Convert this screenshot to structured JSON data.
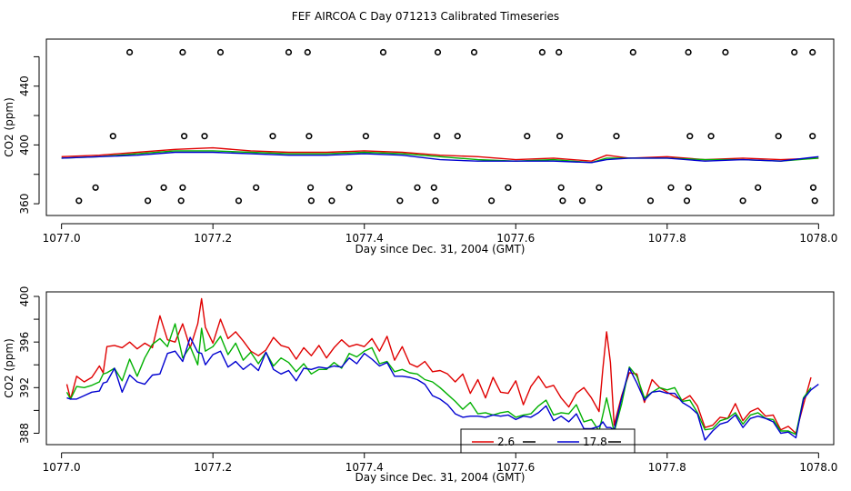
{
  "title": "FEF AIRCOA C  Day 071213  Calibrated Timeseries",
  "chart_data": [
    {
      "type": "line",
      "panel": "top",
      "xlabel": "Day since Dec. 31, 2004 (GMT)",
      "ylabel": "CO2 (ppm)",
      "xlim": [
        1076.98,
        1078.02
      ],
      "ylim": [
        352,
        472
      ],
      "x_ticks": [
        1077.0,
        1077.2,
        1077.4,
        1077.6,
        1077.8,
        1078.0
      ],
      "x_tick_labels": [
        "1077.0",
        "1077.2",
        "1077.4",
        "1077.6",
        "1077.8",
        "1078.0"
      ],
      "y_ticks": [
        360,
        380,
        400,
        420,
        440,
        460
      ],
      "y_tick_labels": [
        "360",
        "",
        "400",
        "",
        "440",
        ""
      ],
      "series": [
        {
          "name": "red",
          "color": "#e00000",
          "x": [
            1077.0,
            1077.05,
            1077.1,
            1077.15,
            1077.2,
            1077.25,
            1077.3,
            1077.35,
            1077.4,
            1077.45,
            1077.5,
            1077.55,
            1077.6,
            1077.65,
            1077.7,
            1077.72,
            1077.75,
            1077.8,
            1077.85,
            1077.9,
            1077.95,
            1078.0
          ],
          "y": [
            392,
            393,
            395,
            397,
            398,
            396,
            395,
            395,
            396,
            395,
            393,
            392,
            390,
            391,
            389,
            393,
            391,
            392,
            390,
            391,
            390,
            391
          ]
        },
        {
          "name": "green",
          "color": "#00b000",
          "x": [
            1077.0,
            1077.05,
            1077.1,
            1077.15,
            1077.2,
            1077.25,
            1077.3,
            1077.35,
            1077.4,
            1077.45,
            1077.5,
            1077.55,
            1077.6,
            1077.65,
            1077.7,
            1077.72,
            1077.75,
            1077.8,
            1077.85,
            1077.9,
            1077.95,
            1078.0
          ],
          "y": [
            391,
            392,
            394,
            396,
            396,
            395,
            394,
            394,
            395,
            394,
            392,
            390,
            389,
            390,
            388,
            391,
            391,
            391,
            390,
            390,
            389,
            391
          ]
        },
        {
          "name": "blue",
          "color": "#0000d0",
          "x": [
            1077.0,
            1077.05,
            1077.1,
            1077.15,
            1077.2,
            1077.25,
            1077.3,
            1077.35,
            1077.4,
            1077.45,
            1077.5,
            1077.55,
            1077.6,
            1077.65,
            1077.7,
            1077.72,
            1077.75,
            1077.8,
            1077.85,
            1077.9,
            1077.95,
            1078.0
          ],
          "y": [
            391,
            392,
            393,
            395,
            395,
            394,
            393,
            393,
            394,
            393,
            390,
            389,
            389,
            389,
            388,
            390,
            391,
            391,
            389,
            390,
            389,
            392
          ]
        }
      ],
      "markers_x": [
        1077.09,
        1077.16,
        1077.21,
        1077.3,
        1077.325,
        1077.425,
        1077.497,
        1077.545,
        1077.635,
        1077.657,
        1077.755,
        1077.828,
        1077.877,
        1077.968,
        1077.992,
        1077.068,
        1077.162,
        1077.189,
        1077.279,
        1077.327,
        1077.402,
        1077.496,
        1077.523,
        1077.615,
        1077.658,
        1077.733,
        1077.83,
        1077.858,
        1077.947,
        1077.992,
        1077.045,
        1077.135,
        1077.16,
        1077.257,
        1077.329,
        1077.38,
        1077.47,
        1077.492,
        1077.59,
        1077.66,
        1077.71,
        1077.805,
        1077.828,
        1077.92,
        1077.993,
        1077.023,
        1077.114,
        1077.158,
        1077.234,
        1077.33,
        1077.357,
        1077.447,
        1077.494,
        1077.568,
        1077.662,
        1077.688,
        1077.778,
        1077.826,
        1077.9,
        1077.995
      ],
      "markers_y": [
        463,
        463,
        463,
        463,
        463,
        463,
        463,
        463,
        463,
        463,
        463,
        463,
        463,
        463,
        463,
        406,
        406,
        406,
        406,
        406,
        406,
        406,
        406,
        406,
        406,
        406,
        406,
        406,
        406,
        406,
        371,
        371,
        371,
        371,
        371,
        371,
        371,
        371,
        371,
        371,
        371,
        371,
        371,
        371,
        371,
        362,
        362,
        362,
        362,
        362,
        362,
        362,
        362,
        362,
        362,
        362,
        362,
        362,
        362,
        362
      ]
    },
    {
      "type": "line",
      "panel": "bottom",
      "xlabel": "Day since Dec. 31, 2004 (GMT)",
      "ylabel": "CO2 (ppm)",
      "xlim": [
        1076.98,
        1078.02
      ],
      "ylim": [
        387,
        400.4
      ],
      "x_ticks": [
        1077.0,
        1077.2,
        1077.4,
        1077.6,
        1077.8,
        1078.0
      ],
      "x_tick_labels": [
        "1077.0",
        "1077.2",
        "1077.4",
        "1077.6",
        "1077.8",
        "1078.0"
      ],
      "y_ticks": [
        388,
        390,
        392,
        394,
        396,
        398,
        400
      ],
      "y_tick_labels": [
        "388",
        "",
        "392",
        "",
        "396",
        "",
        "400"
      ],
      "legend": {
        "position": "bottom-center",
        "entries": [
          {
            "label": "2.6",
            "color": "#e00000"
          },
          {
            "label": "17.8",
            "color": "#0000d0"
          }
        ]
      },
      "series": [
        {
          "name": "red",
          "color": "#e00000",
          "x": [
            1077.007,
            1077.012,
            1077.02,
            1077.03,
            1077.04,
            1077.05,
            1077.055,
            1077.06,
            1077.07,
            1077.08,
            1077.09,
            1077.1,
            1077.11,
            1077.12,
            1077.13,
            1077.14,
            1077.15,
            1077.16,
            1077.17,
            1077.18,
            1077.185,
            1077.19,
            1077.2,
            1077.21,
            1077.22,
            1077.23,
            1077.24,
            1077.25,
            1077.26,
            1077.27,
            1077.28,
            1077.29,
            1077.3,
            1077.31,
            1077.32,
            1077.33,
            1077.34,
            1077.35,
            1077.36,
            1077.37,
            1077.38,
            1077.39,
            1077.4,
            1077.41,
            1077.42,
            1077.43,
            1077.44,
            1077.45,
            1077.46,
            1077.47,
            1077.48,
            1077.49,
            1077.5,
            1077.51,
            1077.52,
            1077.53,
            1077.54,
            1077.55,
            1077.56,
            1077.57,
            1077.58,
            1077.59,
            1077.6,
            1077.61,
            1077.62,
            1077.63,
            1077.64,
            1077.65,
            1077.66,
            1077.67,
            1077.68,
            1077.69,
            1077.7,
            1077.71,
            1077.715,
            1077.72,
            1077.725,
            1077.73,
            1077.74,
            1077.75,
            1077.76,
            1077.77,
            1077.78,
            1077.79,
            1077.8,
            1077.81,
            1077.82,
            1077.83,
            1077.84,
            1077.85,
            1077.86,
            1077.87,
            1077.88,
            1077.89,
            1077.9,
            1077.91,
            1077.92,
            1077.93,
            1077.94,
            1077.95,
            1077.96,
            1077.97,
            1077.98,
            1077.99
          ],
          "y": [
            392.3,
            391.0,
            393.0,
            392.5,
            392.9,
            393.9,
            393.3,
            395.6,
            395.7,
            395.5,
            396.0,
            395.4,
            395.9,
            395.5,
            398.3,
            396.2,
            396.0,
            397.6,
            395.5,
            397.6,
            399.8,
            397.3,
            395.9,
            398.0,
            396.3,
            396.9,
            396.1,
            395.2,
            394.8,
            395.3,
            396.4,
            395.7,
            395.5,
            394.5,
            395.5,
            394.8,
            395.7,
            394.6,
            395.5,
            396.2,
            395.6,
            395.8,
            395.6,
            396.3,
            395.2,
            396.5,
            394.4,
            395.6,
            394.1,
            393.8,
            394.3,
            393.4,
            393.5,
            393.2,
            392.5,
            393.2,
            391.5,
            392.7,
            391.1,
            392.9,
            391.6,
            391.5,
            392.6,
            390.5,
            392.1,
            393.0,
            392.0,
            392.2,
            391.1,
            390.3,
            391.5,
            392.0,
            391.1,
            389.9,
            393.6,
            396.9,
            394.2,
            388.7,
            391.3,
            393.3,
            393.2,
            390.7,
            392.7,
            392.0,
            391.6,
            391.2,
            390.9,
            391.3,
            390.4,
            388.5,
            388.7,
            389.4,
            389.3,
            390.6,
            389.1,
            389.9,
            390.2,
            389.5,
            389.6,
            388.3,
            388.6,
            388.0,
            390.5,
            392.9
          ]
        },
        {
          "name": "green",
          "color": "#00b000",
          "x": [
            1077.007,
            1077.012,
            1077.02,
            1077.03,
            1077.04,
            1077.05,
            1077.055,
            1077.06,
            1077.07,
            1077.08,
            1077.09,
            1077.1,
            1077.11,
            1077.12,
            1077.13,
            1077.14,
            1077.15,
            1077.16,
            1077.17,
            1077.18,
            1077.185,
            1077.19,
            1077.2,
            1077.21,
            1077.22,
            1077.23,
            1077.24,
            1077.25,
            1077.26,
            1077.27,
            1077.28,
            1077.29,
            1077.3,
            1077.31,
            1077.32,
            1077.33,
            1077.34,
            1077.35,
            1077.36,
            1077.37,
            1077.38,
            1077.39,
            1077.4,
            1077.41,
            1077.42,
            1077.43,
            1077.44,
            1077.45,
            1077.46,
            1077.47,
            1077.48,
            1077.49,
            1077.5,
            1077.51,
            1077.52,
            1077.53,
            1077.54,
            1077.55,
            1077.56,
            1077.57,
            1077.58,
            1077.59,
            1077.6,
            1077.61,
            1077.62,
            1077.63,
            1077.64,
            1077.65,
            1077.66,
            1077.67,
            1077.68,
            1077.69,
            1077.7,
            1077.71,
            1077.715,
            1077.72,
            1077.725,
            1077.73,
            1077.74,
            1077.75,
            1077.76,
            1077.77,
            1077.78,
            1077.79,
            1077.8,
            1077.81,
            1077.82,
            1077.83,
            1077.84,
            1077.85,
            1077.86,
            1077.87,
            1077.88,
            1077.89,
            1077.9,
            1077.91,
            1077.92,
            1077.93,
            1077.94,
            1077.95,
            1077.96,
            1077.97,
            1077.98,
            1077.99
          ],
          "y": [
            391.6,
            391.0,
            392.1,
            392.0,
            392.2,
            392.5,
            393.2,
            393.3,
            393.7,
            392.6,
            394.5,
            393.0,
            394.6,
            395.8,
            396.3,
            395.6,
            397.6,
            394.6,
            395.6,
            394.0,
            397.2,
            395.2,
            395.6,
            396.5,
            394.9,
            395.9,
            394.4,
            395.1,
            394.1,
            395.1,
            393.9,
            394.6,
            394.2,
            393.4,
            394.1,
            393.2,
            393.6,
            393.6,
            394.2,
            393.7,
            395.0,
            394.7,
            395.2,
            395.5,
            394.1,
            394.3,
            393.4,
            393.6,
            393.3,
            393.2,
            392.7,
            392.5,
            392.0,
            391.4,
            390.8,
            390.1,
            390.7,
            389.7,
            389.8,
            389.6,
            389.8,
            389.9,
            389.4,
            389.6,
            389.7,
            390.4,
            390.9,
            389.6,
            389.8,
            389.7,
            390.5,
            389.0,
            389.2,
            388.2,
            389.6,
            391.1,
            389.6,
            388.1,
            390.6,
            393.8,
            393.0,
            391.1,
            391.6,
            392.0,
            391.8,
            392.0,
            390.8,
            390.9,
            389.8,
            388.3,
            388.4,
            389.1,
            389.3,
            389.8,
            388.8,
            389.6,
            389.8,
            389.3,
            389.2,
            388.2,
            388.2,
            387.9,
            391.1,
            392.0
          ]
        },
        {
          "name": "blue",
          "color": "#0000d0",
          "x": [
            1077.007,
            1077.012,
            1077.02,
            1077.03,
            1077.04,
            1077.05,
            1077.055,
            1077.06,
            1077.07,
            1077.08,
            1077.09,
            1077.1,
            1077.11,
            1077.12,
            1077.13,
            1077.14,
            1077.15,
            1077.16,
            1077.17,
            1077.18,
            1077.185,
            1077.19,
            1077.2,
            1077.21,
            1077.22,
            1077.23,
            1077.24,
            1077.25,
            1077.26,
            1077.27,
            1077.28,
            1077.29,
            1077.3,
            1077.31,
            1077.32,
            1077.33,
            1077.34,
            1077.35,
            1077.36,
            1077.37,
            1077.38,
            1077.39,
            1077.4,
            1077.41,
            1077.42,
            1077.43,
            1077.44,
            1077.45,
            1077.46,
            1077.47,
            1077.48,
            1077.49,
            1077.5,
            1077.51,
            1077.52,
            1077.53,
            1077.54,
            1077.55,
            1077.56,
            1077.57,
            1077.58,
            1077.59,
            1077.6,
            1077.61,
            1077.62,
            1077.63,
            1077.64,
            1077.65,
            1077.66,
            1077.67,
            1077.68,
            1077.69,
            1077.7,
            1077.71,
            1077.715,
            1077.72,
            1077.725,
            1077.73,
            1077.74,
            1077.75,
            1077.76,
            1077.77,
            1077.78,
            1077.79,
            1077.8,
            1077.81,
            1077.82,
            1077.83,
            1077.84,
            1077.85,
            1077.86,
            1077.87,
            1077.88,
            1077.89,
            1077.9,
            1077.91,
            1077.92,
            1077.93,
            1077.94,
            1077.95,
            1077.96,
            1077.97,
            1077.98,
            1077.99,
            1078.0
          ],
          "y": [
            391.1,
            391.0,
            391.0,
            391.3,
            391.6,
            391.7,
            392.4,
            392.5,
            393.7,
            391.6,
            393.1,
            392.5,
            392.3,
            393.1,
            393.2,
            395.0,
            395.2,
            394.3,
            396.4,
            395.1,
            395.0,
            394.0,
            394.9,
            395.2,
            393.8,
            394.3,
            393.6,
            394.1,
            393.5,
            395.1,
            393.6,
            393.2,
            393.5,
            392.6,
            393.7,
            393.6,
            393.8,
            393.7,
            393.9,
            393.8,
            394.6,
            394.1,
            395.0,
            394.5,
            393.9,
            394.2,
            393.0,
            393.0,
            392.9,
            392.7,
            392.3,
            391.3,
            391.0,
            390.5,
            389.7,
            389.4,
            389.5,
            389.5,
            389.4,
            389.6,
            389.5,
            389.6,
            389.2,
            389.5,
            389.4,
            389.8,
            390.4,
            389.1,
            389.5,
            389.0,
            389.7,
            388.4,
            388.4,
            388.6,
            389.0,
            388.5,
            388.5,
            388.3,
            391.1,
            393.7,
            392.4,
            390.9,
            391.6,
            391.7,
            391.5,
            391.5,
            390.7,
            390.3,
            389.7,
            387.4,
            388.2,
            388.8,
            389.0,
            389.6,
            388.5,
            389.3,
            389.5,
            389.3,
            389.0,
            388.0,
            388.1,
            387.6,
            391.0,
            391.8,
            392.3
          ]
        }
      ]
    }
  ]
}
